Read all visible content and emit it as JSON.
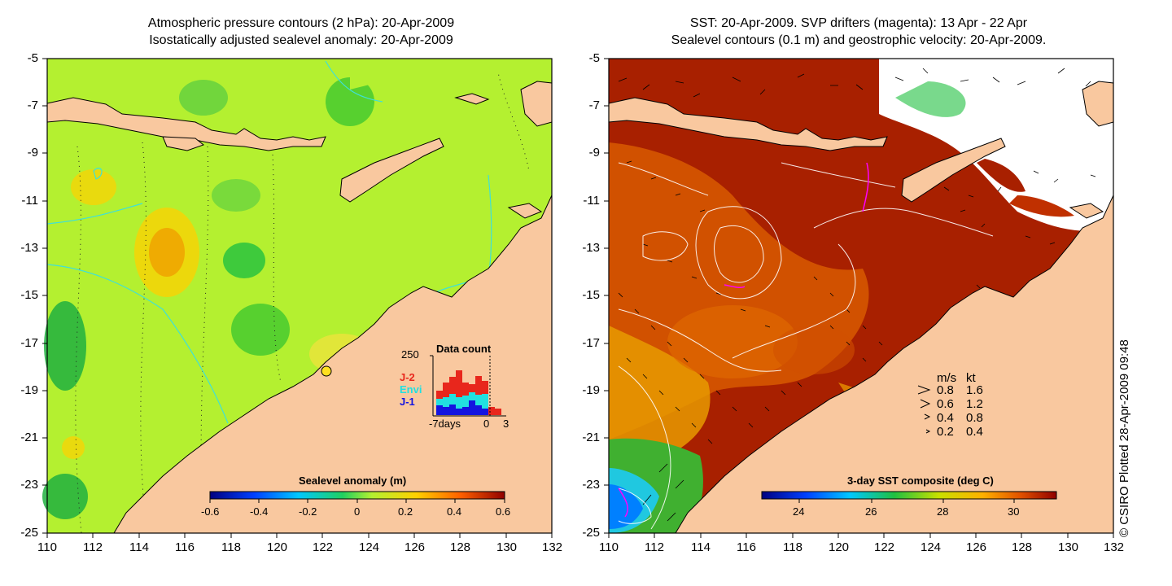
{
  "left_panel": {
    "title_line1": "Atmospheric pressure contours (2 hPa): 20-Apr-2009",
    "title_line2": "Isostatically adjusted sealevel anomaly: 20-Apr-2009",
    "colorbar": {
      "label": "Sealevel anomaly (m)",
      "ticks": [
        "-0.6",
        "-0.4",
        "-0.2",
        "0",
        "0.2",
        "0.4",
        "0.6"
      ]
    },
    "data_count": {
      "title": "Data count",
      "ymax_label": "250",
      "legend": [
        {
          "label": "J-2",
          "color": "#e8261c"
        },
        {
          "label": "Envi",
          "color": "#22e0e0"
        },
        {
          "label": "J-1",
          "color": "#1414e0"
        }
      ],
      "xlabels": [
        "-7days",
        "0",
        "3"
      ]
    }
  },
  "right_panel": {
    "title_line1": "SST: 20-Apr-2009. SVP drifters (magenta): 13 Apr - 22 Apr",
    "title_line2": "Sealevel contours (0.1 m) and geostrophic velocity: 20-Apr-2009.",
    "colorbar": {
      "label": "3-day SST composite (deg C)",
      "ticks": [
        "24",
        "26",
        "28",
        "30"
      ]
    },
    "speed_legend": {
      "header_ms": "m/s",
      "header_kt": "kt",
      "rows": [
        {
          "ms": "0.8",
          "kt": "1.6"
        },
        {
          "ms": "0.6",
          "kt": "1.2"
        },
        {
          "ms": "0.4",
          "kt": "0.8"
        },
        {
          "ms": "0.2",
          "kt": "0.4"
        }
      ]
    }
  },
  "axes": {
    "y_ticks": [
      "-5",
      "-7",
      "-9",
      "-11",
      "-13",
      "-15",
      "-17",
      "-19",
      "-21",
      "-23",
      "-25"
    ],
    "x_ticks": [
      "110",
      "112",
      "114",
      "116",
      "118",
      "120",
      "122",
      "124",
      "126",
      "128",
      "130",
      "132"
    ]
  },
  "credit": "© CSIRO Plotted 28-Apr-2009 09:48",
  "colors": {
    "land": "#f9c89f",
    "ocean_left": "#b4f030",
    "ocean_right": "#a82000",
    "contour_cyan": "#3fe0d8"
  }
}
